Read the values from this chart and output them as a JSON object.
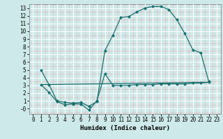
{
  "title": "",
  "xlabel": "Humidex (Indice chaleur)",
  "bg_color": "#cee9e9",
  "grid_color": "#ffffff",
  "grid_minor_color": "#f5cccc",
  "line_color": "#1a7070",
  "xlim": [
    -0.5,
    23.5
  ],
  "ylim": [
    -0.7,
    13.5
  ],
  "xticks": [
    0,
    1,
    2,
    3,
    4,
    5,
    6,
    7,
    8,
    9,
    10,
    11,
    12,
    13,
    14,
    15,
    16,
    17,
    18,
    19,
    20,
    21,
    22,
    23
  ],
  "yticks": [
    0,
    1,
    2,
    3,
    4,
    5,
    6,
    7,
    8,
    9,
    10,
    11,
    12,
    13
  ],
  "yticklabels": [
    "-0",
    "1",
    "2",
    "3",
    "4",
    "5",
    "6",
    "7",
    "8",
    "9",
    "10",
    "11",
    "12",
    "13"
  ],
  "line1_x": [
    1,
    2,
    3,
    4,
    5,
    6,
    7,
    8,
    9,
    10,
    11,
    12,
    13,
    14,
    15,
    16,
    17,
    18,
    19,
    20,
    21,
    22
  ],
  "line1_y": [
    5.0,
    3.1,
    1.0,
    0.8,
    0.7,
    0.8,
    0.3,
    0.9,
    7.5,
    9.5,
    11.8,
    11.9,
    12.5,
    13.0,
    13.2,
    13.2,
    12.8,
    11.5,
    9.7,
    7.6,
    7.2,
    3.5
  ],
  "line2_x": [
    1,
    2,
    3,
    4,
    5,
    6,
    7,
    8,
    9,
    10,
    11,
    12,
    13,
    14,
    15,
    16,
    17,
    18,
    19,
    20,
    21,
    22
  ],
  "line2_y": [
    3.1,
    2.1,
    0.9,
    0.5,
    0.6,
    0.6,
    -0.2,
    1.0,
    4.5,
    3.0,
    3.0,
    3.0,
    3.1,
    3.1,
    3.1,
    3.2,
    3.2,
    3.2,
    3.2,
    3.3,
    3.3,
    3.4
  ],
  "line3_x": [
    1,
    22
  ],
  "line3_y": [
    3.1,
    3.4
  ]
}
